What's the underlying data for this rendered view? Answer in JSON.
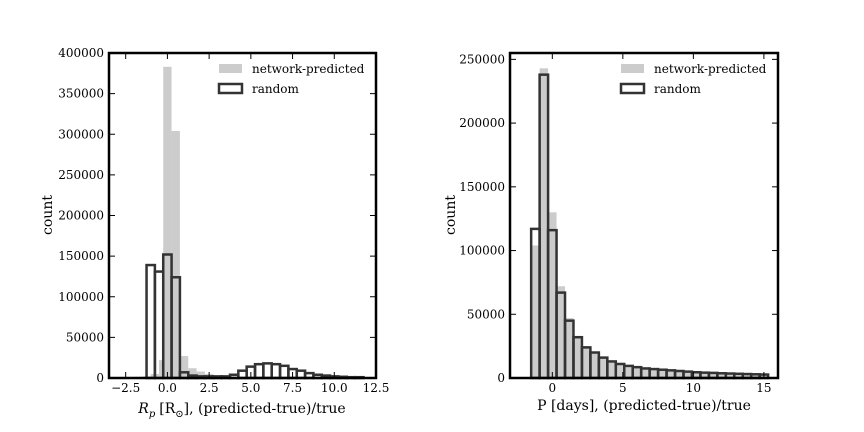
{
  "chart_data": [
    {
      "type": "bar",
      "title": "",
      "xlabel_prefix": "R",
      "xlabel_sub": "p",
      "xlabel_unit": "[R",
      "xlabel_sun": "⊙",
      "xlabel_rest": "], (predicted-true)/true",
      "ylabel": "count",
      "xlim": [
        -3.5,
        12.5
      ],
      "ylim": [
        0,
        400000
      ],
      "xticks": [
        -2.5,
        0.0,
        2.5,
        5.0,
        7.5,
        10.0,
        12.5
      ],
      "xtick_labels": [
        "−2.5",
        "0.0",
        "2.5",
        "5.0",
        "7.5",
        "10.0",
        "12.5"
      ],
      "yticks": [
        0,
        50000,
        100000,
        150000,
        200000,
        250000,
        300000,
        350000,
        400000
      ],
      "ytick_labels": [
        "0",
        "50000",
        "100000",
        "150000",
        "200000",
        "250000",
        "300000",
        "350000",
        "400000"
      ],
      "legend_position": "top-right",
      "series": [
        {
          "name": "network-predicted",
          "style": "filled",
          "color": "#cccccc",
          "bin_width": 0.5,
          "bins": [
            [
              -2.5,
              1000
            ],
            [
              -2.0,
              1500
            ],
            [
              -1.5,
              2000
            ],
            [
              -1.0,
              5000
            ],
            [
              -0.5,
              22000
            ],
            [
              -0.25,
              383000
            ],
            [
              0.25,
              304000
            ],
            [
              0.75,
              27000
            ],
            [
              1.25,
              12000
            ],
            [
              1.75,
              8000
            ],
            [
              2.25,
              5000
            ],
            [
              2.75,
              3000
            ],
            [
              3.25,
              2000
            ],
            [
              3.75,
              1500
            ],
            [
              4.25,
              1000
            ],
            [
              4.75,
              800
            ],
            [
              5.25,
              600
            ],
            [
              5.75,
              500
            ],
            [
              6.25,
              400
            ],
            [
              6.75,
              300
            ]
          ]
        },
        {
          "name": "random",
          "style": "outline",
          "color": "#333333",
          "bin_width": 0.5,
          "bins": [
            [
              -1.25,
              139000
            ],
            [
              -0.75,
              131000
            ],
            [
              -0.25,
              152000
            ],
            [
              0.25,
              124000
            ],
            [
              0.75,
              7000
            ],
            [
              1.25,
              3000
            ],
            [
              1.75,
              2000
            ],
            [
              2.25,
              2000
            ],
            [
              2.75,
              2000
            ],
            [
              3.25,
              2000
            ],
            [
              3.75,
              4000
            ],
            [
              4.25,
              9000
            ],
            [
              4.75,
              14000
            ],
            [
              5.25,
              17000
            ],
            [
              5.75,
              18000
            ],
            [
              6.25,
              17000
            ],
            [
              6.75,
              15000
            ],
            [
              7.25,
              11000
            ],
            [
              7.75,
              9000
            ],
            [
              8.25,
              6000
            ],
            [
              8.75,
              4000
            ],
            [
              9.25,
              3000
            ],
            [
              9.75,
              2000
            ],
            [
              10.25,
              1500
            ],
            [
              10.75,
              1000
            ],
            [
              11.25,
              1000
            ]
          ]
        }
      ]
    },
    {
      "type": "bar",
      "title": "",
      "xlabel": "P [days], (predicted-true)/true",
      "ylabel": "count",
      "xlim": [
        -3,
        16
      ],
      "ylim": [
        0,
        255000
      ],
      "xticks": [
        0,
        5,
        10,
        15
      ],
      "xtick_labels": [
        "0",
        "5",
        "10",
        "15"
      ],
      "yticks": [
        0,
        50000,
        100000,
        150000,
        200000,
        250000
      ],
      "ytick_labels": [
        "0",
        "50000",
        "100000",
        "150000",
        "200000",
        "250000"
      ],
      "legend_position": "top-right",
      "series": [
        {
          "name": "network-predicted",
          "style": "filled",
          "color": "#cccccc",
          "bin_width": 0.6,
          "bins": [
            [
              -1.5,
              104000
            ],
            [
              -0.9,
              243000
            ],
            [
              -0.3,
              130000
            ],
            [
              0.3,
              72000
            ],
            [
              0.9,
              47000
            ],
            [
              1.5,
              33000
            ],
            [
              2.1,
              25000
            ],
            [
              2.7,
              20000
            ],
            [
              3.3,
              16000
            ],
            [
              3.9,
              13000
            ],
            [
              4.5,
              11000
            ],
            [
              5.1,
              10000
            ],
            [
              5.7,
              9000
            ],
            [
              6.3,
              8000
            ],
            [
              6.9,
              7000
            ],
            [
              7.5,
              6500
            ],
            [
              8.1,
              6000
            ],
            [
              8.7,
              5500
            ],
            [
              9.3,
              5000
            ],
            [
              9.9,
              4500
            ],
            [
              10.5,
              4200
            ],
            [
              11.1,
              4000
            ],
            [
              11.7,
              3700
            ],
            [
              12.3,
              3500
            ],
            [
              12.9,
              3300
            ],
            [
              13.5,
              3100
            ],
            [
              14.1,
              2900
            ],
            [
              14.7,
              2700
            ]
          ]
        },
        {
          "name": "random",
          "style": "outline",
          "color": "#333333",
          "bin_width": 0.6,
          "bins": [
            [
              -1.5,
              117000
            ],
            [
              -0.9,
              238000
            ],
            [
              -0.3,
              116000
            ],
            [
              0.3,
              67000
            ],
            [
              0.9,
              45000
            ],
            [
              1.5,
              32000
            ],
            [
              2.1,
              24000
            ],
            [
              2.7,
              20000
            ],
            [
              3.3,
              16000
            ],
            [
              3.9,
              13000
            ],
            [
              4.5,
              11000
            ],
            [
              5.1,
              9500
            ],
            [
              5.7,
              8500
            ],
            [
              6.3,
              7500
            ],
            [
              6.9,
              7000
            ],
            [
              7.5,
              6500
            ],
            [
              8.1,
              6000
            ],
            [
              8.7,
              5500
            ],
            [
              9.3,
              5000
            ],
            [
              9.9,
              4500
            ],
            [
              10.5,
              4200
            ],
            [
              11.1,
              4000
            ],
            [
              11.7,
              3700
            ],
            [
              12.3,
              3500
            ],
            [
              12.9,
              3300
            ],
            [
              13.5,
              3100
            ],
            [
              14.1,
              2900
            ],
            [
              14.7,
              2700
            ]
          ]
        }
      ]
    }
  ]
}
